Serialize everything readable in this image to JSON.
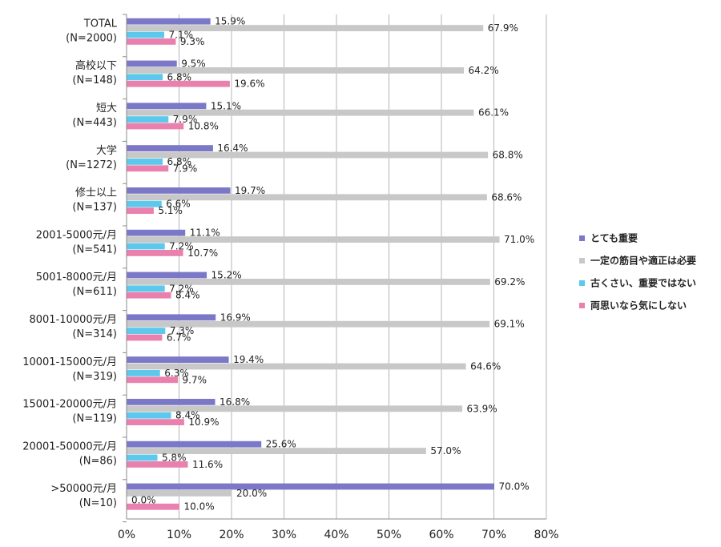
{
  "chart_data": {
    "type": "bar",
    "orientation": "horizontal",
    "grouped": true,
    "categories": [
      [
        "TOTAL",
        "(N=2000)"
      ],
      [
        "高校以下",
        "(N=148)"
      ],
      [
        "短大",
        "(N=443)"
      ],
      [
        "大学",
        "(N=1272)"
      ],
      [
        "修士以上",
        "(N=137)"
      ],
      [
        "2001-5000元/月",
        "(N=541)"
      ],
      [
        "5001-8000元/月",
        "(N=611)"
      ],
      [
        "8001-10000元/月",
        "(N=314)"
      ],
      [
        "10001-15000元/月",
        "(N=319)"
      ],
      [
        "15001-20000元/月",
        "(N=119)"
      ],
      [
        "20001-50000元/月",
        "(N=86)"
      ],
      [
        ">50000元/月",
        "(N=10)"
      ]
    ],
    "series": [
      {
        "name": "とても重要",
        "color": "#7b78c8",
        "values": [
          15.9,
          9.5,
          15.1,
          16.4,
          19.7,
          11.1,
          15.2,
          16.9,
          19.4,
          16.8,
          25.6,
          70.0
        ]
      },
      {
        "name": "一定の筋目や適正は必要",
        "color": "#c8c8c8",
        "values": [
          67.9,
          64.2,
          66.1,
          68.8,
          68.6,
          71.0,
          69.2,
          69.1,
          64.6,
          63.9,
          57.0,
          20.0
        ]
      },
      {
        "name": "古くさい、重要ではない",
        "color": "#5bc8ec",
        "values": [
          7.1,
          6.8,
          7.9,
          6.8,
          6.6,
          7.2,
          7.2,
          7.3,
          6.3,
          8.4,
          5.8,
          0.0
        ]
      },
      {
        "name": "両思いなら気にしない",
        "color": "#ea80ad",
        "values": [
          9.3,
          19.6,
          10.8,
          7.9,
          5.1,
          10.7,
          8.4,
          6.7,
          9.7,
          10.9,
          11.6,
          10.0
        ]
      }
    ],
    "value_suffix": "%",
    "xlim": [
      0,
      80
    ],
    "xticks": [
      "0%",
      "10%",
      "20%",
      "30%",
      "40%",
      "50%",
      "60%",
      "70%",
      "80%"
    ],
    "grid": true,
    "legend_position": "right"
  }
}
